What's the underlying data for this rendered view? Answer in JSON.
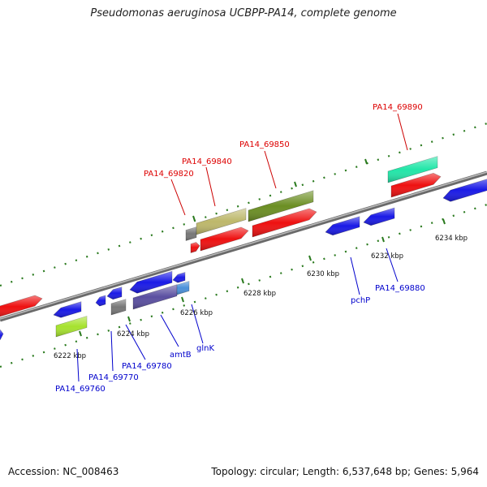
{
  "title": "Pseudomonas aeruginosa UCBPP-PA14, complete genome",
  "footer": {
    "accession": "Accession: NC_008463",
    "topology": "Topology: circular; Length: 6,537,648 bp; Genes: 5,964"
  },
  "colors": {
    "backbone": "#888888",
    "ticks": "#2a7a1e",
    "top_labels": "#dd0000",
    "bottom_labels": "#0000cc"
  },
  "kbp_labels": [
    "6222 kbp",
    "6224 kbp",
    "6226 kbp",
    "6228 kbp",
    "6230 kbp",
    "6232 kbp",
    "6234 kbp"
  ],
  "gene_labels_top": [
    "PA14_69820",
    "PA14_69840",
    "PA14_69850",
    "PA14_69890"
  ],
  "gene_labels_bottom": [
    "PA14_69760",
    "PA14_69770",
    "PA14_69780",
    "amtB",
    "glnK",
    "pchP",
    "PA14_69880"
  ],
  "features": [
    {
      "name": "forward-red-1",
      "color": "#ee1111"
    },
    {
      "name": "forward-red-2",
      "color": "#ee1111"
    },
    {
      "name": "forward-red-3",
      "color": "#ee1111"
    },
    {
      "name": "forward-red-4",
      "color": "#ee1111"
    },
    {
      "name": "forward-red-5",
      "color": "#ee1111"
    },
    {
      "name": "olive-gene",
      "color": "#6b8e23"
    },
    {
      "name": "khaki-gene",
      "color": "#bdb76b"
    },
    {
      "name": "teal-gene",
      "color": "#22e6a8"
    },
    {
      "name": "gray-gene",
      "color": "#777777"
    },
    {
      "name": "lime-gene",
      "color": "#a6e22e"
    },
    {
      "name": "reverse-blue",
      "color": "#1a1ae6"
    },
    {
      "name": "dark-slate-gene",
      "color": "#5a4fa0"
    },
    {
      "name": "light-blue-gene",
      "color": "#4a90d9"
    }
  ]
}
